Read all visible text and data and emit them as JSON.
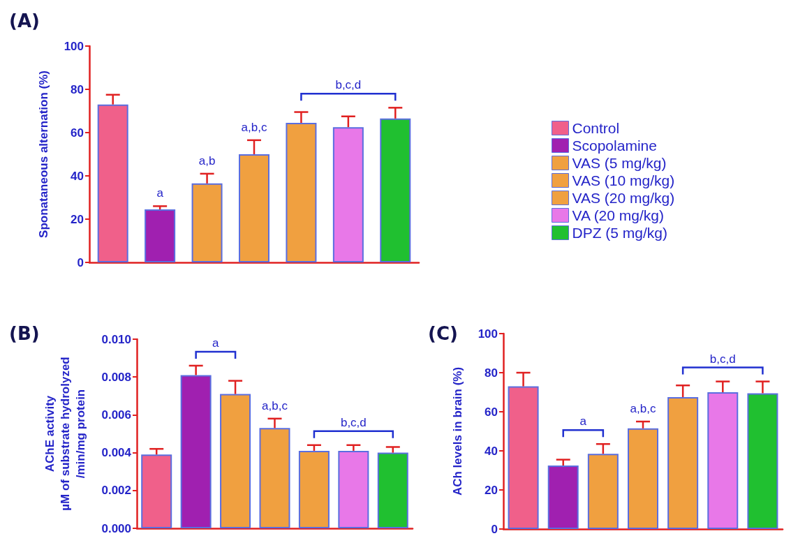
{
  "chart_data": [
    {
      "type": "bar",
      "title": "(A)",
      "ylabel": "Sponataneous alternation (%)",
      "categories": [
        null,
        null,
        null,
        null,
        null,
        null,
        null
      ],
      "series": [
        {
          "name": "Control",
          "color": "#f0608a",
          "values": [
            73,
            null,
            null,
            null,
            null,
            null,
            null
          ],
          "errors": [
            [
              73,
              77.5
            ],
            null,
            null,
            null,
            null,
            null,
            null
          ]
        },
        {
          "name": "Scopolamine",
          "color": "#a020b0",
          "values": [
            null,
            24.5,
            null,
            null,
            null,
            null,
            null
          ],
          "errors": [
            null,
            [
              24.5,
              26
            ],
            null,
            null,
            null,
            null,
            null
          ]
        },
        {
          "name": "VAS (5 mg/kg)",
          "color": "#f0a040",
          "values": [
            null,
            null,
            36.5,
            null,
            null,
            null,
            null
          ],
          "errors": [
            null,
            null,
            [
              36.5,
              41
            ],
            null,
            null,
            null,
            null
          ]
        },
        {
          "name": "VAS (10 mg/kg)",
          "color": "#f0a040",
          "values": [
            null,
            null,
            null,
            50,
            null,
            null,
            null
          ],
          "errors": [
            null,
            null,
            null,
            [
              50,
              56.5
            ],
            null,
            null,
            null
          ]
        },
        {
          "name": "VAS (20 mg/kg)",
          "color": "#f0a040",
          "values": [
            null,
            null,
            null,
            null,
            64.5,
            null,
            null
          ],
          "errors": [
            null,
            null,
            null,
            null,
            [
              64.5,
              69.5
            ],
            null,
            null
          ]
        },
        {
          "name": "VA (20 mg/kg)",
          "color": "#e878e8",
          "values": [
            null,
            null,
            null,
            null,
            null,
            62.5,
            null
          ],
          "errors": [
            null,
            null,
            null,
            null,
            null,
            [
              62.5,
              67.5
            ],
            null
          ]
        },
        {
          "name": "DPZ (5 mg/kg)",
          "color": "#20c030",
          "values": [
            null,
            null,
            null,
            null,
            null,
            null,
            66.5
          ],
          "errors": [
            null,
            null,
            null,
            null,
            null,
            null,
            [
              66.5,
              71.5
            ]
          ]
        }
      ],
      "ylim": [
        0,
        100
      ],
      "yticks": [
        0,
        20,
        40,
        60,
        80,
        100
      ],
      "legend": "right",
      "annotations": [
        "a",
        "a,b",
        "a,b,c",
        "b,c,d"
      ]
    },
    {
      "type": "bar",
      "title": "(B)",
      "ylabel": "AChE activity\nµM of substrate hydrolyzed\n/min/mg protein",
      "categories": [
        null,
        null,
        null,
        null,
        null,
        null,
        null
      ],
      "series": [
        {
          "color": "#f0608a",
          "values": [
            0.0039,
            null,
            null,
            null,
            null,
            null,
            null
          ],
          "errors": [
            [
              0.0039,
              0.0042
            ],
            null,
            null,
            null,
            null,
            null,
            null
          ]
        },
        {
          "color": "#a020b0",
          "values": [
            null,
            0.0081,
            null,
            null,
            null,
            null,
            null
          ],
          "errors": [
            null,
            [
              0.0081,
              0.0086
            ],
            null,
            null,
            null,
            null,
            null
          ]
        },
        {
          "color": "#f0a040",
          "values": [
            null,
            null,
            0.0071,
            null,
            null,
            null,
            null
          ],
          "errors": [
            null,
            null,
            [
              0.0071,
              0.0078
            ],
            null,
            null,
            null,
            null
          ]
        },
        {
          "color": "#f0a040",
          "values": [
            null,
            null,
            null,
            0.0053,
            null,
            null,
            null
          ],
          "errors": [
            null,
            null,
            null,
            [
              0.0053,
              0.0058
            ],
            null,
            null,
            null
          ]
        },
        {
          "color": "#f0a040",
          "values": [
            null,
            null,
            null,
            null,
            0.0041,
            null,
            null
          ],
          "errors": [
            null,
            null,
            null,
            null,
            [
              0.0041,
              0.0044
            ],
            null,
            null
          ]
        },
        {
          "color": "#e878e8",
          "values": [
            null,
            null,
            null,
            null,
            null,
            0.0041,
            null
          ],
          "errors": [
            null,
            null,
            null,
            null,
            null,
            [
              0.0041,
              0.0044
            ],
            null
          ]
        },
        {
          "color": "#20c030",
          "values": [
            null,
            null,
            null,
            null,
            null,
            null,
            0.004
          ],
          "errors": [
            null,
            null,
            null,
            null,
            null,
            null,
            [
              0.004,
              0.0043
            ]
          ]
        }
      ],
      "ylim": [
        0,
        0.01
      ],
      "yticks": [
        {
          "value": 0,
          "label": "0.000"
        },
        {
          "value": 0.002,
          "label": "0.002"
        },
        {
          "value": 0.004,
          "label": "0.004"
        },
        {
          "value": 0.006,
          "label": "0.006"
        },
        {
          "value": 0.008,
          "label": "0.008"
        },
        {
          "value": 0.01,
          "label": "0.010"
        }
      ],
      "annotations": [
        "a",
        "a,b,c",
        "b,c,d"
      ]
    },
    {
      "type": "bar",
      "title": "(C)",
      "ylabel": "ACh levels in brain (%)",
      "categories": [
        null,
        null,
        null,
        null,
        null,
        null,
        null
      ],
      "series": [
        {
          "color": "#f0608a",
          "values": [
            73,
            null,
            null,
            null,
            null,
            null,
            null
          ],
          "errors": [
            [
              73,
              80
            ],
            null,
            null,
            null,
            null,
            null,
            null
          ]
        },
        {
          "color": "#a020b0",
          "values": [
            null,
            32.5,
            null,
            null,
            null,
            null,
            null
          ],
          "errors": [
            null,
            [
              32.5,
              35.5
            ],
            null,
            null,
            null,
            null,
            null
          ]
        },
        {
          "color": "#f0a040",
          "values": [
            null,
            null,
            38.5,
            null,
            null,
            null,
            null
          ],
          "errors": [
            null,
            null,
            [
              38.5,
              43.5
            ],
            null,
            null,
            null,
            null
          ]
        },
        {
          "color": "#f0a040",
          "values": [
            null,
            null,
            null,
            51.5,
            null,
            null,
            null
          ],
          "errors": [
            null,
            null,
            null,
            [
              51.5,
              55
            ],
            null,
            null,
            null
          ]
        },
        {
          "color": "#f0a040",
          "values": [
            null,
            null,
            null,
            null,
            67.5,
            null,
            null
          ],
          "errors": [
            null,
            null,
            null,
            null,
            [
              67.5,
              73.5
            ],
            null,
            null
          ]
        },
        {
          "color": "#e878e8",
          "values": [
            null,
            null,
            null,
            null,
            null,
            70,
            null
          ],
          "errors": [
            null,
            null,
            null,
            null,
            null,
            [
              70,
              75.5
            ],
            null
          ]
        },
        {
          "color": "#20c030",
          "values": [
            null,
            null,
            null,
            null,
            null,
            null,
            69.5
          ],
          "errors": [
            null,
            null,
            null,
            null,
            null,
            null,
            [
              69.5,
              75.5
            ]
          ]
        }
      ],
      "ylim": [
        0,
        100
      ],
      "yticks": [
        0,
        20,
        40,
        60,
        80,
        100
      ],
      "annotations": [
        "a",
        "a,b,c",
        "b,c,d"
      ]
    }
  ]
}
